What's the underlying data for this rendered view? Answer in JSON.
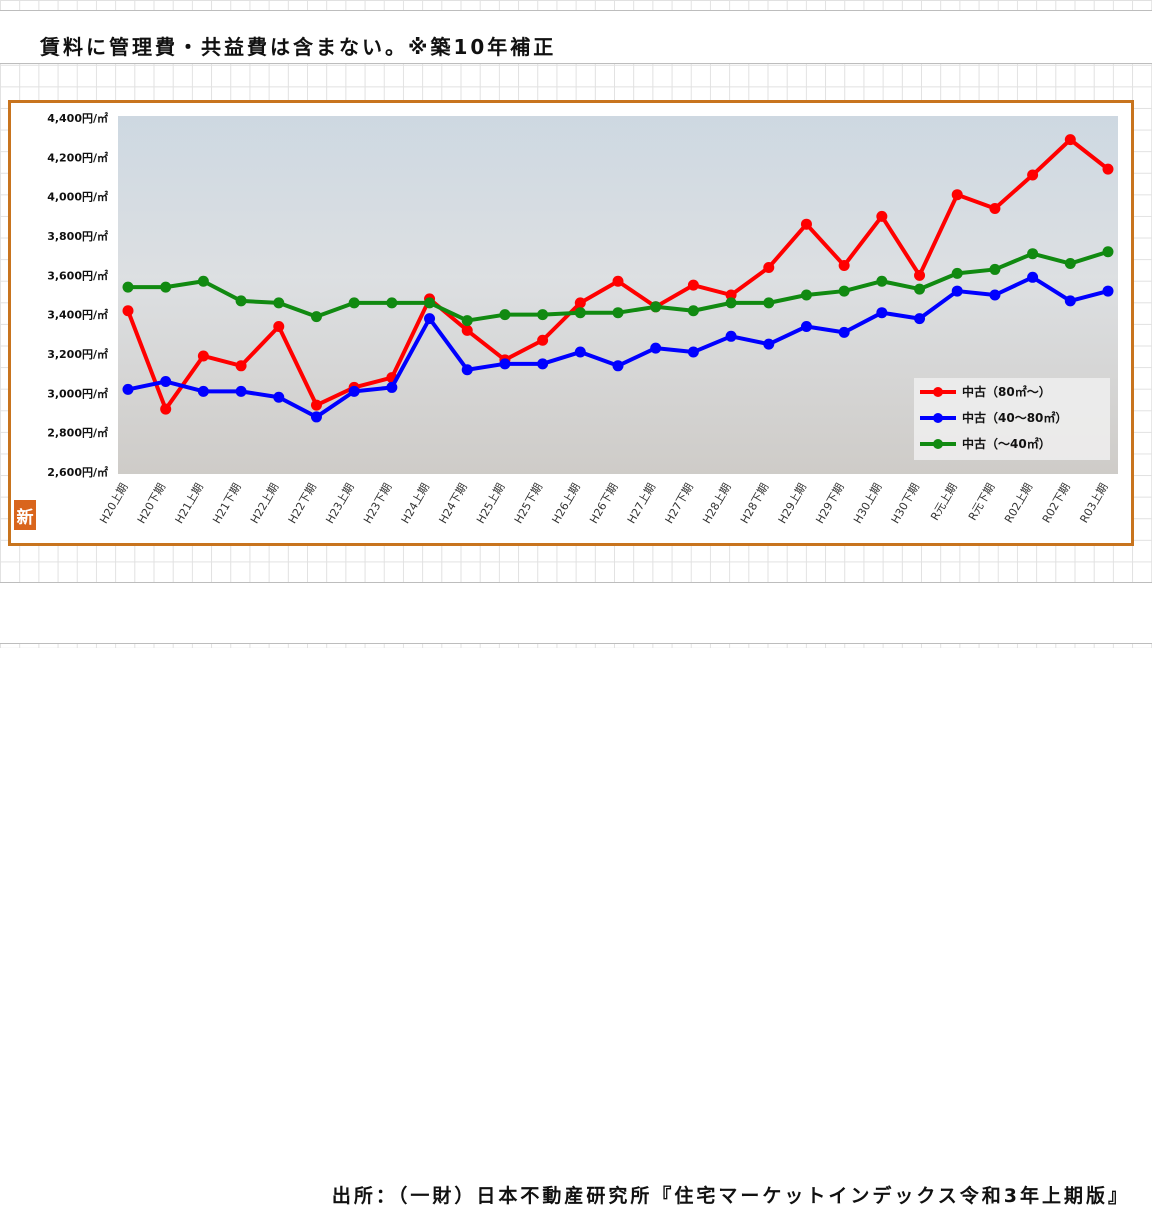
{
  "header": {
    "note": "賃料に管理費・共益費は含まない。※築10年補正"
  },
  "footer": {
    "source": "出所：（一財）日本不動産研究所『住宅マーケットインデックス令和3年上期版』"
  },
  "badge": {
    "label": "新"
  },
  "chart_data": {
    "type": "line",
    "title": "",
    "xlabel": "",
    "ylabel": "",
    "ylim": [
      2600,
      4400
    ],
    "yticks": [
      2600,
      2800,
      3000,
      3200,
      3400,
      3600,
      3800,
      4000,
      4200,
      4400
    ],
    "ytick_labels": [
      "2,600円/㎡",
      "2,800円/㎡",
      "3,000円/㎡",
      "3,200円/㎡",
      "3,400円/㎡",
      "3,600円/㎡",
      "3,800円/㎡",
      "4,000円/㎡",
      "4,200円/㎡",
      "4,400円/㎡"
    ],
    "grid": false,
    "legend_position": "bottom-right",
    "categories": [
      "H20上期",
      "H20下期",
      "H21上期",
      "H21下期",
      "H22上期",
      "H22下期",
      "H23上期",
      "H23下期",
      "H24上期",
      "H24下期",
      "H25上期",
      "H25下期",
      "H26上期",
      "H26下期",
      "H27上期",
      "H27下期",
      "H28上期",
      "H28下期",
      "H29上期",
      "H29下期",
      "H30上期",
      "H30下期",
      "R元上期",
      "R元下期",
      "R02上期",
      "R02下期",
      "R03上期"
    ],
    "series": [
      {
        "name": "中古（80㎡〜）",
        "color": "#ff0000",
        "values": [
          3420,
          2920,
          3190,
          3140,
          3340,
          2940,
          3030,
          3080,
          3480,
          3320,
          3170,
          3270,
          3460,
          3570,
          3440,
          3550,
          3500,
          3640,
          3860,
          3650,
          3900,
          3600,
          4010,
          3940,
          4110,
          4290,
          4140
        ]
      },
      {
        "name": "中古（40〜80㎡）",
        "color": "#0000ff",
        "values": [
          3020,
          3060,
          3010,
          3010,
          2980,
          2880,
          3010,
          3030,
          3380,
          3120,
          3150,
          3150,
          3210,
          3140,
          3230,
          3210,
          3290,
          3250,
          3340,
          3310,
          3410,
          3380,
          3520,
          3500,
          3590,
          3470,
          3520
        ]
      },
      {
        "name": "中古（〜40㎡）",
        "color": "#118a11",
        "values": [
          3540,
          3540,
          3570,
          3470,
          3460,
          3390,
          3460,
          3460,
          3460,
          3370,
          3400,
          3400,
          3410,
          3410,
          3440,
          3420,
          3460,
          3460,
          3500,
          3520,
          3570,
          3530,
          3610,
          3630,
          3710,
          3660,
          3720
        ]
      }
    ]
  }
}
